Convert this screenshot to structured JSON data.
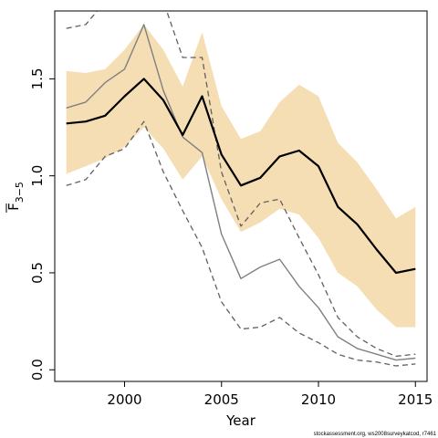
{
  "chart_data": {
    "type": "line",
    "xlabel": "Year",
    "ylabel_main": "F",
    "ylabel_sub": "3−5",
    "xlim": [
      1996.4,
      2015.6
    ],
    "ylim": [
      -0.06,
      1.85
    ],
    "xticks": [
      2000,
      2005,
      2010,
      2015
    ],
    "xtick_labels": [
      "2000",
      "2005",
      "2010",
      "2015"
    ],
    "yticks": [
      0.0,
      0.5,
      1.0,
      1.5
    ],
    "ytick_labels": [
      "0.0",
      "0.5",
      "1.0",
      "1.5"
    ],
    "grid": false,
    "x": [
      1997,
      1998,
      1999,
      2000,
      2001,
      2002,
      2003,
      2004,
      2005,
      2006,
      2007,
      2008,
      2009,
      2010,
      2011,
      2012,
      2013,
      2014,
      2015
    ],
    "band": {
      "color": "#f5deb3",
      "upper": [
        1.54,
        1.53,
        1.55,
        1.65,
        1.78,
        1.65,
        1.46,
        1.74,
        1.36,
        1.19,
        1.23,
        1.38,
        1.47,
        1.41,
        1.17,
        1.07,
        0.93,
        0.78,
        0.84
      ],
      "lower": [
        1.01,
        1.05,
        1.09,
        1.15,
        1.25,
        1.14,
        0.98,
        1.1,
        0.88,
        0.71,
        0.76,
        0.83,
        0.8,
        0.68,
        0.5,
        0.43,
        0.31,
        0.22,
        0.22
      ]
    },
    "series": [
      {
        "style": "thick-black",
        "color": "#000000",
        "values": [
          1.27,
          1.28,
          1.31,
          1.41,
          1.5,
          1.39,
          1.21,
          1.41,
          1.11,
          0.95,
          0.99,
          1.1,
          1.13,
          1.05,
          0.84,
          0.75,
          0.62,
          0.5,
          0.52
        ]
      },
      {
        "style": "grey-solid",
        "color": "#808080",
        "values": [
          1.35,
          1.38,
          1.48,
          1.55,
          1.78,
          1.44,
          1.2,
          1.12,
          0.7,
          0.47,
          0.53,
          0.57,
          0.43,
          0.32,
          0.17,
          0.11,
          0.08,
          0.05,
          0.06
        ]
      },
      {
        "style": "grey-dashed",
        "color": "#606060",
        "values": [
          1.76,
          1.78,
          1.9,
          1.97,
          2.05,
          1.9,
          1.61,
          1.61,
          1.02,
          0.74,
          0.86,
          0.88,
          0.68,
          0.49,
          0.27,
          0.17,
          0.11,
          0.07,
          0.08
        ]
      },
      {
        "style": "grey-dashed",
        "color": "#606060",
        "values": [
          0.95,
          0.98,
          1.1,
          1.14,
          1.28,
          1.02,
          0.82,
          0.63,
          0.35,
          0.21,
          0.22,
          0.27,
          0.19,
          0.14,
          0.08,
          0.05,
          0.04,
          0.02,
          0.03
        ]
      }
    ]
  },
  "credit": "stockassessment.org, ws2008surveykatcod, r7461"
}
